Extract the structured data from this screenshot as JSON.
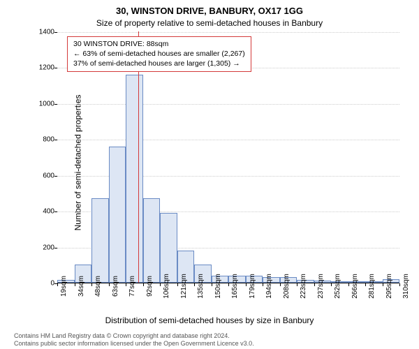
{
  "chart": {
    "type": "histogram",
    "title_main": "30, WINSTON DRIVE, BANBURY, OX17 1GG",
    "title_sub": "Size of property relative to semi-detached houses in Banbury",
    "x_axis_label": "Distribution of semi-detached houses by size in Banbury",
    "y_axis_label": "Number of semi-detached properties",
    "background_color": "#ffffff",
    "grid_color": "#cccccc",
    "bar_fill": "#dde6f4",
    "bar_border": "#6a8bc4",
    "marker_color": "#d43a3a",
    "title_fontsize": 13,
    "sub_fontsize": 12,
    "axis_label_fontsize": 12,
    "tick_fontsize": 10,
    "y_ticks": [
      0,
      200,
      400,
      600,
      800,
      1000,
      1200,
      1400
    ],
    "ylim": [
      0,
      1400
    ],
    "x_tick_labels": [
      "19sqm",
      "34sqm",
      "48sqm",
      "63sqm",
      "77sqm",
      "92sqm",
      "106sqm",
      "121sqm",
      "135sqm",
      "150sqm",
      "165sqm",
      "179sqm",
      "194sqm",
      "208sqm",
      "223sqm",
      "237sqm",
      "252sqm",
      "266sqm",
      "281sqm",
      "295sqm",
      "310sqm"
    ],
    "bars": [
      15,
      100,
      470,
      760,
      1160,
      470,
      390,
      180,
      100,
      40,
      40,
      40,
      30,
      30,
      15,
      10,
      5,
      5,
      8,
      20
    ],
    "marker_value": 88,
    "x_bin_start": 19,
    "x_bin_width": 14.55,
    "info_box": {
      "line1": "30 WINSTON DRIVE: 88sqm",
      "line2": "← 63% of semi-detached houses are smaller (2,267)",
      "line3": "37% of semi-detached houses are larger (1,305) →",
      "border_color": "#d43a3a",
      "fontsize": 10.5
    },
    "footer": {
      "line1": "Contains HM Land Registry data © Crown copyright and database right 2024.",
      "line2": "Contains public sector information licensed under the Open Government Licence v3.0.",
      "color": "#555555",
      "fontsize": 9
    }
  }
}
